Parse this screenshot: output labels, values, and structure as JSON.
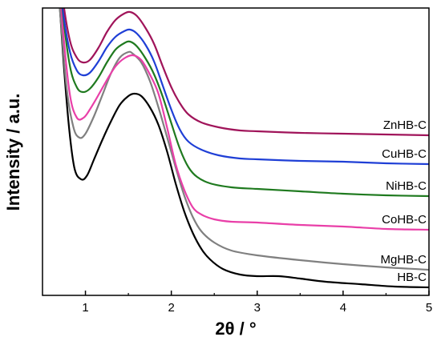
{
  "chart_data": {
    "type": "line",
    "xlabel": "2θ / °",
    "ylabel": "Intensity / a.u.",
    "xlim": [
      0.5,
      5
    ],
    "x_ticks": [
      1,
      2,
      3,
      4,
      5
    ],
    "y_ticks_shown": false,
    "grid": false,
    "legend": "none (series labelled at right end of curves)",
    "series": [
      {
        "name": "HB-C",
        "color": "#000000",
        "points": [
          [
            0.65,
            450
          ],
          [
            0.72,
            330
          ],
          [
            0.8,
            220
          ],
          [
            0.87,
            160
          ],
          [
            0.95,
            145
          ],
          [
            1.02,
            150
          ],
          [
            1.1,
            170
          ],
          [
            1.2,
            195
          ],
          [
            1.3,
            218
          ],
          [
            1.4,
            238
          ],
          [
            1.5,
            249
          ],
          [
            1.57,
            252
          ],
          [
            1.65,
            249
          ],
          [
            1.75,
            235
          ],
          [
            1.85,
            213
          ],
          [
            1.95,
            180
          ],
          [
            2.05,
            140
          ],
          [
            2.15,
            105
          ],
          [
            2.25,
            78
          ],
          [
            2.35,
            58
          ],
          [
            2.45,
            45
          ],
          [
            2.6,
            33
          ],
          [
            2.8,
            26
          ],
          [
            3.0,
            24
          ],
          [
            3.25,
            24
          ],
          [
            3.5,
            21
          ],
          [
            3.8,
            17
          ],
          [
            4.2,
            14
          ],
          [
            4.6,
            11
          ],
          [
            5.0,
            10
          ]
        ]
      },
      {
        "name": "MgHB-C",
        "color": "#808080",
        "points": [
          [
            0.62,
            450
          ],
          [
            0.7,
            360
          ],
          [
            0.78,
            260
          ],
          [
            0.86,
            210
          ],
          [
            0.93,
            197
          ],
          [
            1.0,
            202
          ],
          [
            1.1,
            224
          ],
          [
            1.2,
            251
          ],
          [
            1.3,
            278
          ],
          [
            1.4,
            297
          ],
          [
            1.5,
            304
          ],
          [
            1.55,
            302
          ],
          [
            1.65,
            291
          ],
          [
            1.75,
            268
          ],
          [
            1.85,
            235
          ],
          [
            1.95,
            198
          ],
          [
            2.05,
            160
          ],
          [
            2.15,
            125
          ],
          [
            2.25,
            98
          ],
          [
            2.35,
            80
          ],
          [
            2.5,
            66
          ],
          [
            2.7,
            56
          ],
          [
            3.0,
            50
          ],
          [
            3.5,
            44
          ],
          [
            4.0,
            39
          ],
          [
            4.5,
            35
          ],
          [
            5.0,
            32
          ]
        ]
      },
      {
        "name": "CoHB-C",
        "color": "#e93fa8",
        "points": [
          [
            0.66,
            450
          ],
          [
            0.74,
            330
          ],
          [
            0.82,
            250
          ],
          [
            0.9,
            222
          ],
          [
            0.98,
            222
          ],
          [
            1.05,
            232
          ],
          [
            1.15,
            250
          ],
          [
            1.25,
            269
          ],
          [
            1.35,
            286
          ],
          [
            1.45,
            296
          ],
          [
            1.55,
            300
          ],
          [
            1.65,
            294
          ],
          [
            1.75,
            276
          ],
          [
            1.85,
            252
          ],
          [
            1.95,
            210
          ],
          [
            2.05,
            164
          ],
          [
            2.15,
            132
          ],
          [
            2.25,
            110
          ],
          [
            2.35,
            101
          ],
          [
            2.5,
            95
          ],
          [
            2.7,
            92
          ],
          [
            3.0,
            91
          ],
          [
            3.5,
            88
          ],
          [
            4.0,
            86
          ],
          [
            4.5,
            83
          ],
          [
            5.0,
            82
          ]
        ]
      },
      {
        "name": "NiHB-C",
        "color": "#1f7a1f",
        "points": [
          [
            0.66,
            450
          ],
          [
            0.74,
            350
          ],
          [
            0.82,
            286
          ],
          [
            0.9,
            260
          ],
          [
            0.97,
            254
          ],
          [
            1.05,
            258
          ],
          [
            1.15,
            272
          ],
          [
            1.25,
            291
          ],
          [
            1.35,
            307
          ],
          [
            1.45,
            315
          ],
          [
            1.52,
            317
          ],
          [
            1.6,
            311
          ],
          [
            1.7,
            296
          ],
          [
            1.8,
            276
          ],
          [
            1.9,
            248
          ],
          [
            2.0,
            215
          ],
          [
            2.1,
            183
          ],
          [
            2.2,
            160
          ],
          [
            2.3,
            148
          ],
          [
            2.45,
            140
          ],
          [
            2.7,
            135
          ],
          [
            3.0,
            133
          ],
          [
            3.5,
            130
          ],
          [
            4.0,
            127
          ],
          [
            4.5,
            125
          ],
          [
            5.0,
            124
          ]
        ]
      },
      {
        "name": "CuHB-C",
        "color": "#1f3fd6",
        "points": [
          [
            0.66,
            450
          ],
          [
            0.74,
            355
          ],
          [
            0.82,
            304
          ],
          [
            0.9,
            281
          ],
          [
            0.97,
            275
          ],
          [
            1.05,
            278
          ],
          [
            1.15,
            292
          ],
          [
            1.25,
            310
          ],
          [
            1.35,
            323
          ],
          [
            1.45,
            330
          ],
          [
            1.52,
            332
          ],
          [
            1.6,
            327
          ],
          [
            1.7,
            313
          ],
          [
            1.8,
            292
          ],
          [
            1.9,
            262
          ],
          [
            2.0,
            232
          ],
          [
            2.1,
            207
          ],
          [
            2.2,
            192
          ],
          [
            2.35,
            182
          ],
          [
            2.55,
            175
          ],
          [
            2.8,
            171
          ],
          [
            3.0,
            170
          ],
          [
            3.5,
            168
          ],
          [
            4.0,
            167
          ],
          [
            4.5,
            165
          ],
          [
            5.0,
            164
          ]
        ]
      },
      {
        "name": "ZnHB-C",
        "color": "#a0145a",
        "points": [
          [
            0.66,
            450
          ],
          [
            0.74,
            368
          ],
          [
            0.82,
            318
          ],
          [
            0.9,
            297
          ],
          [
            0.97,
            291
          ],
          [
            1.05,
            294
          ],
          [
            1.15,
            309
          ],
          [
            1.25,
            329
          ],
          [
            1.35,
            344
          ],
          [
            1.45,
            352
          ],
          [
            1.52,
            354
          ],
          [
            1.6,
            349
          ],
          [
            1.7,
            334
          ],
          [
            1.8,
            314
          ],
          [
            1.9,
            286
          ],
          [
            2.0,
            260
          ],
          [
            2.1,
            240
          ],
          [
            2.2,
            226
          ],
          [
            2.35,
            216
          ],
          [
            2.55,
            210
          ],
          [
            2.8,
            206
          ],
          [
            3.0,
            205
          ],
          [
            3.5,
            203
          ],
          [
            4.0,
            202
          ],
          [
            4.5,
            201
          ],
          [
            5.0,
            200
          ]
        ]
      }
    ]
  }
}
